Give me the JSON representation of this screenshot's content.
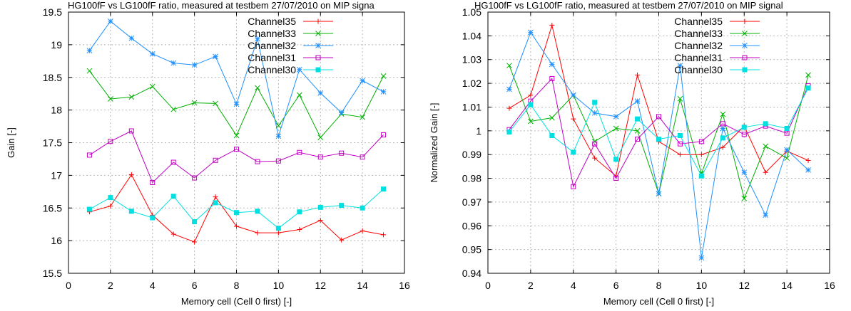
{
  "chart_data": [
    {
      "type": "line",
      "title": "HG100fF vs LG100fF ratio, measured at testbem 27/07/2010 on MIP signa",
      "xlabel": "Memory cell (Cell 0 first) [-]",
      "ylabel": "Gain [-]",
      "xlim": [
        0,
        16
      ],
      "ylim": [
        15.5,
        19.5
      ],
      "xticks": [
        "0",
        "2",
        "4",
        "6",
        "8",
        "10",
        "12",
        "14",
        "16"
      ],
      "yticks": [
        "15.5",
        "16",
        "16.5",
        "17",
        "17.5",
        "18",
        "18.5",
        "19",
        "19.5"
      ],
      "grid": true,
      "legend_position": "top-right",
      "x": [
        1,
        2,
        3,
        4,
        5,
        6,
        7,
        8,
        9,
        10,
        11,
        12,
        13,
        14,
        15
      ],
      "series": [
        {
          "name": "Channel35",
          "color": "#ff0000",
          "marker": "plus",
          "values": [
            16.44,
            16.53,
            17.01,
            16.39,
            16.1,
            15.98,
            16.67,
            16.22,
            16.12,
            16.12,
            16.17,
            16.31,
            16.01,
            16.15,
            16.09
          ]
        },
        {
          "name": "Channel33",
          "color": "#00b000",
          "marker": "cross",
          "values": [
            18.6,
            18.17,
            18.2,
            18.36,
            18.01,
            18.11,
            18.1,
            17.61,
            18.34,
            17.76,
            18.23,
            17.58,
            17.94,
            17.89,
            18.52
          ]
        },
        {
          "name": "Channel32",
          "color": "#1e90ff",
          "marker": "star",
          "values": [
            18.91,
            19.36,
            19.1,
            18.86,
            18.72,
            18.69,
            18.82,
            18.09,
            19.09,
            17.6,
            18.62,
            18.26,
            17.96,
            18.45,
            18.28
          ]
        },
        {
          "name": "Channel31",
          "color": "#c000c0",
          "marker": "open-square",
          "values": [
            17.31,
            17.52,
            17.68,
            16.89,
            17.2,
            16.96,
            17.23,
            17.4,
            17.21,
            17.22,
            17.35,
            17.28,
            17.34,
            17.28,
            17.62
          ]
        },
        {
          "name": "Channel30",
          "color": "#00e0e0",
          "marker": "filled-square",
          "values": [
            16.48,
            16.66,
            16.45,
            16.35,
            16.68,
            16.29,
            16.58,
            16.43,
            16.45,
            16.19,
            16.44,
            16.51,
            16.54,
            16.5,
            16.79
          ]
        }
      ]
    },
    {
      "type": "line",
      "title": "HG100fF vs LG100fF ratio, measured at testbem 27/07/2010 on MIP signal",
      "xlabel": "Memory cell (Cell 0 first) [-]",
      "ylabel": "Normalized Gain [-]",
      "xlim": [
        0,
        16
      ],
      "ylim": [
        0.94,
        1.05
      ],
      "xticks": [
        "0",
        "2",
        "4",
        "6",
        "8",
        "10",
        "12",
        "14",
        "16"
      ],
      "yticks": [
        "0.94",
        "0.95",
        "0.96",
        "0.97",
        "0.98",
        "0.99",
        "1",
        "1.01",
        "1.02",
        "1.03",
        "1.04",
        "1.05"
      ],
      "grid": true,
      "legend_position": "top-right",
      "x": [
        1,
        2,
        3,
        4,
        5,
        6,
        7,
        8,
        9,
        10,
        11,
        12,
        13,
        14,
        15
      ],
      "series": [
        {
          "name": "Channel35",
          "color": "#ff0000",
          "marker": "plus",
          "values": [
            1.0095,
            1.015,
            1.0445,
            1.005,
            0.9885,
            0.981,
            1.0235,
            0.9955,
            0.99,
            0.99,
            0.993,
            1.002,
            0.9825,
            0.9915,
            0.9875
          ]
        },
        {
          "name": "Channel33",
          "color": "#00b000",
          "marker": "cross",
          "values": [
            1.0275,
            1.004,
            1.0055,
            1.015,
            0.9955,
            1.001,
            1.0,
            0.9735,
            1.0135,
            0.982,
            1.007,
            0.9715,
            0.9935,
            0.9885,
            1.0235
          ]
        },
        {
          "name": "Channel32",
          "color": "#1e90ff",
          "marker": "star",
          "values": [
            1.0175,
            1.0415,
            1.028,
            1.015,
            1.0075,
            1.006,
            1.0125,
            0.9735,
            1.0275,
            0.9465,
            1.001,
            0.9825,
            0.9645,
            0.992,
            0.9835
          ]
        },
        {
          "name": "Channel31",
          "color": "#c000c0",
          "marker": "open-square",
          "values": [
            1.0005,
            1.0125,
            1.022,
            0.9765,
            0.9945,
            0.98,
            0.9965,
            1.006,
            0.9945,
            0.9955,
            1.003,
            0.9985,
            1.002,
            0.999,
            1.019
          ]
        },
        {
          "name": "Channel30",
          "color": "#00e0e0",
          "marker": "filled-square",
          "values": [
            0.9995,
            1.011,
            0.998,
            0.991,
            1.012,
            0.988,
            1.005,
            0.9965,
            0.998,
            0.981,
            0.997,
            1.0015,
            1.003,
            1.001,
            1.018
          ]
        }
      ]
    }
  ]
}
